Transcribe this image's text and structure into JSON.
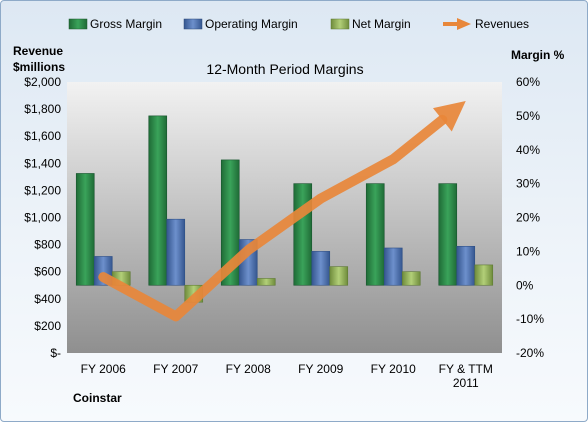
{
  "chart_data": {
    "type": "bar",
    "title": "12-Month Period Margins",
    "categories": [
      "FY 2006",
      "FY 2007",
      "FY 2008",
      "FY 2009",
      "FY 2010",
      "FY & TTM 2011"
    ],
    "left_axis": {
      "label_line1": "Revenue",
      "label_line2": "$millions",
      "range": [
        0,
        2000
      ],
      "ticks": [
        0,
        200,
        400,
        600,
        800,
        1000,
        1200,
        1400,
        1600,
        1800,
        2000
      ],
      "tick_labels": [
        "$-",
        "$200",
        "$400",
        "$600",
        "$800",
        "$1,000",
        "$1,200",
        "$1,400",
        "$1,600",
        "$1,800",
        "$2,000"
      ]
    },
    "right_axis": {
      "label": "Margin %",
      "range": [
        -20,
        60
      ],
      "ticks": [
        -20,
        -10,
        0,
        10,
        20,
        30,
        40,
        50,
        60
      ],
      "tick_labels": [
        "-20%",
        "-10%",
        "0%",
        "10%",
        "20%",
        "30%",
        "40%",
        "50%",
        "60%"
      ]
    },
    "series": [
      {
        "name": "Gross Margin",
        "axis": "right",
        "kind": "bar",
        "color": "#2e8b4a",
        "values": [
          33,
          50,
          37,
          30,
          30,
          30
        ]
      },
      {
        "name": "Operating Margin",
        "axis": "right",
        "kind": "bar",
        "color": "#4a72b5",
        "values": [
          8.5,
          19.5,
          13.5,
          10,
          11,
          11.5
        ]
      },
      {
        "name": "Net Margin",
        "axis": "right",
        "kind": "bar",
        "color": "#93b45a",
        "values": [
          4,
          -5,
          2,
          5.5,
          4,
          6
        ]
      },
      {
        "name": "Revenues",
        "axis": "left",
        "kind": "line",
        "color": "#e8873a",
        "values": [
          560,
          270,
          760,
          1140,
          1430,
          1860
        ]
      }
    ],
    "grid": false,
    "legend_position": "top"
  },
  "footer": {
    "company": "Coinstar"
  }
}
